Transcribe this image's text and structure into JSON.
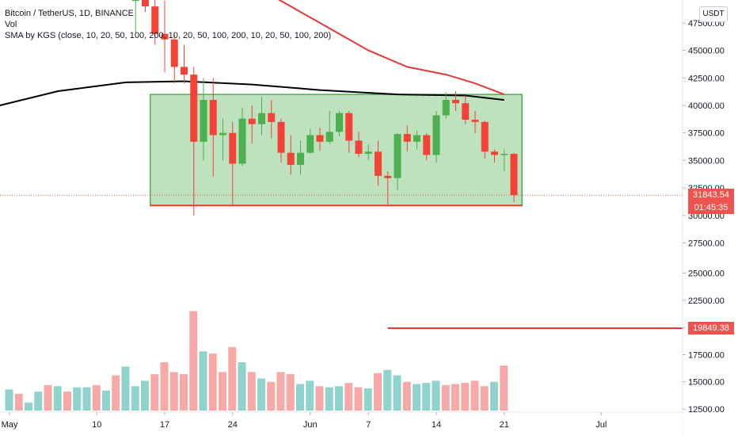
{
  "legend": {
    "symbol_line": "Bitcoin / TetherUS, 1D, BINANCE",
    "vol_line": "Vol",
    "sma_line": "SMA by KGS (close, 10, 20, 50, 100, 200, 10, 20, 50, 100, 200, 10, 20, 50, 100, 200)"
  },
  "price_scale": {
    "currency": "USDT",
    "last_price": "31843.54",
    "countdown": "01:45:35",
    "marked_level": "19849.38"
  },
  "colors": {
    "up": "#26a69a",
    "down": "#ef5350",
    "candle_up": "#4caf50",
    "candle_down": "#f44336",
    "vol_up": "#8fd3cc",
    "vol_down": "#f7a9a7",
    "range_fill": "#b9e0b9",
    "range_border": "#4caf50",
    "range_support": "#e53935",
    "sma_red": "#e53935",
    "sma_black": "#000000"
  },
  "chart_data": {
    "type": "candlestick",
    "symbol": "Bitcoin / TetherUS",
    "interval": "1D",
    "exchange": "BINANCE",
    "y_ticks": [
      "12500.00",
      "15000.00",
      "17500.00",
      "20000.00",
      "22500.00",
      "25000.00",
      "27500.00",
      "30000.00",
      "32500.00",
      "35000.00",
      "37500.00",
      "40000.00",
      "42500.00",
      "45000.00",
      "47500.00"
    ],
    "x_ticks": [
      {
        "label": "May",
        "day": 0
      },
      {
        "label": "10",
        "day": 9
      },
      {
        "label": "17",
        "day": 16
      },
      {
        "label": "24",
        "day": 23
      },
      {
        "label": "Jun",
        "day": 31
      },
      {
        "label": "7",
        "day": 37
      },
      {
        "label": "14",
        "day": 44
      },
      {
        "label": "21",
        "day": 51
      },
      {
        "label": "Jul",
        "day": 61
      }
    ],
    "candles": [
      {
        "day": 13,
        "o": 49500,
        "h": 52000,
        "l": 46500,
        "c": 49700
      },
      {
        "day": 14,
        "o": 49700,
        "h": 51500,
        "l": 48500,
        "c": 49000
      },
      {
        "day": 15,
        "o": 49000,
        "h": 50000,
        "l": 45500,
        "c": 46500
      },
      {
        "day": 16,
        "o": 46500,
        "h": 49500,
        "l": 43000,
        "c": 46000
      },
      {
        "day": 17,
        "o": 46000,
        "h": 46500,
        "l": 42000,
        "c": 43500
      },
      {
        "day": 18,
        "o": 43500,
        "h": 45500,
        "l": 42000,
        "c": 42800
      },
      {
        "day": 19,
        "o": 42800,
        "h": 43500,
        "l": 30000,
        "c": 36700
      },
      {
        "day": 20,
        "o": 36700,
        "h": 42500,
        "l": 35000,
        "c": 40500
      },
      {
        "day": 21,
        "o": 40500,
        "h": 42500,
        "l": 33500,
        "c": 37300
      },
      {
        "day": 22,
        "o": 37300,
        "h": 38800,
        "l": 35000,
        "c": 37500
      },
      {
        "day": 23,
        "o": 37500,
        "h": 38500,
        "l": 31000,
        "c": 34700
      },
      {
        "day": 24,
        "o": 34700,
        "h": 39800,
        "l": 34500,
        "c": 38800
      },
      {
        "day": 25,
        "o": 38800,
        "h": 40000,
        "l": 36500,
        "c": 38300
      },
      {
        "day": 26,
        "o": 38300,
        "h": 40800,
        "l": 37300,
        "c": 39300
      },
      {
        "day": 27,
        "o": 39300,
        "h": 40500,
        "l": 37000,
        "c": 38500
      },
      {
        "day": 28,
        "o": 38500,
        "h": 38800,
        "l": 34800,
        "c": 35700
      },
      {
        "day": 29,
        "o": 35700,
        "h": 37300,
        "l": 33700,
        "c": 34600
      },
      {
        "day": 30,
        "o": 34600,
        "h": 36800,
        "l": 33700,
        "c": 35700
      },
      {
        "day": 31,
        "o": 35700,
        "h": 37900,
        "l": 35600,
        "c": 37300
      },
      {
        "day": 32,
        "o": 37300,
        "h": 38000,
        "l": 35900,
        "c": 36700
      },
      {
        "day": 33,
        "o": 36700,
        "h": 39500,
        "l": 36500,
        "c": 37600
      },
      {
        "day": 34,
        "o": 37600,
        "h": 39500,
        "l": 37200,
        "c": 39300
      },
      {
        "day": 35,
        "o": 39300,
        "h": 39500,
        "l": 35700,
        "c": 36800
      },
      {
        "day": 36,
        "o": 36800,
        "h": 37600,
        "l": 35300,
        "c": 35600
      },
      {
        "day": 37,
        "o": 35600,
        "h": 36500,
        "l": 35000,
        "c": 35800
      },
      {
        "day": 38,
        "o": 35800,
        "h": 36800,
        "l": 32700,
        "c": 33600
      },
      {
        "day": 39,
        "o": 33600,
        "h": 34000,
        "l": 31000,
        "c": 33400
      },
      {
        "day": 40,
        "o": 33400,
        "h": 37500,
        "l": 32300,
        "c": 37400
      },
      {
        "day": 41,
        "o": 37400,
        "h": 38200,
        "l": 35800,
        "c": 36700
      },
      {
        "day": 42,
        "o": 36700,
        "h": 37700,
        "l": 36000,
        "c": 37300
      },
      {
        "day": 43,
        "o": 37300,
        "h": 37500,
        "l": 35000,
        "c": 35500
      },
      {
        "day": 44,
        "o": 35500,
        "h": 39500,
        "l": 34800,
        "c": 39100
      },
      {
        "day": 45,
        "o": 39100,
        "h": 41200,
        "l": 38800,
        "c": 40500
      },
      {
        "day": 46,
        "o": 40500,
        "h": 41300,
        "l": 39500,
        "c": 40200
      },
      {
        "day": 47,
        "o": 40200,
        "h": 40900,
        "l": 38300,
        "c": 38700
      },
      {
        "day": 48,
        "o": 38700,
        "h": 39500,
        "l": 37500,
        "c": 38500
      },
      {
        "day": 49,
        "o": 38500,
        "h": 38600,
        "l": 35200,
        "c": 35800
      },
      {
        "day": 50,
        "o": 35800,
        "h": 36000,
        "l": 34800,
        "c": 35500
      },
      {
        "day": 51,
        "o": 35500,
        "h": 36000,
        "l": 34000,
        "c": 35600
      },
      {
        "day": 52,
        "o": 35600,
        "h": 35700,
        "l": 31200,
        "c": 31843.54
      }
    ],
    "volume": [
      {
        "day": 0,
        "v": 14300,
        "up": true
      },
      {
        "day": 1,
        "v": 13900,
        "up": false
      },
      {
        "day": 2,
        "v": 13100,
        "up": true
      },
      {
        "day": 3,
        "v": 14100,
        "up": true
      },
      {
        "day": 4,
        "v": 14700,
        "up": false
      },
      {
        "day": 5,
        "v": 14600,
        "up": true
      },
      {
        "day": 6,
        "v": 14100,
        "up": false
      },
      {
        "day": 7,
        "v": 14500,
        "up": true
      },
      {
        "day": 8,
        "v": 14500,
        "up": true
      },
      {
        "day": 9,
        "v": 14700,
        "up": false
      },
      {
        "day": 10,
        "v": 14200,
        "up": true
      },
      {
        "day": 11,
        "v": 15600,
        "up": false
      },
      {
        "day": 12,
        "v": 16400,
        "up": true
      },
      {
        "day": 13,
        "v": 14600,
        "up": true
      },
      {
        "day": 14,
        "v": 15100,
        "up": true
      },
      {
        "day": 15,
        "v": 15700,
        "up": false
      },
      {
        "day": 16,
        "v": 16800,
        "up": false
      },
      {
        "day": 17,
        "v": 15900,
        "up": false
      },
      {
        "day": 18,
        "v": 15700,
        "up": false
      },
      {
        "day": 19,
        "v": 21500,
        "up": false
      },
      {
        "day": 20,
        "v": 17800,
        "up": true
      },
      {
        "day": 21,
        "v": 17600,
        "up": false
      },
      {
        "day": 22,
        "v": 15900,
        "up": false
      },
      {
        "day": 23,
        "v": 18200,
        "up": false
      },
      {
        "day": 24,
        "v": 16800,
        "up": true
      },
      {
        "day": 25,
        "v": 15900,
        "up": false
      },
      {
        "day": 26,
        "v": 15300,
        "up": true
      },
      {
        "day": 27,
        "v": 15000,
        "up": false
      },
      {
        "day": 28,
        "v": 15900,
        "up": false
      },
      {
        "day": 29,
        "v": 15700,
        "up": false
      },
      {
        "day": 30,
        "v": 14800,
        "up": true
      },
      {
        "day": 31,
        "v": 15100,
        "up": true
      },
      {
        "day": 32,
        "v": 14600,
        "up": false
      },
      {
        "day": 33,
        "v": 14500,
        "up": true
      },
      {
        "day": 34,
        "v": 14600,
        "up": true
      },
      {
        "day": 35,
        "v": 14900,
        "up": false
      },
      {
        "day": 36,
        "v": 14500,
        "up": false
      },
      {
        "day": 37,
        "v": 14400,
        "up": true
      },
      {
        "day": 38,
        "v": 15800,
        "up": false
      },
      {
        "day": 39,
        "v": 16100,
        "up": true
      },
      {
        "day": 40,
        "v": 15600,
        "up": true
      },
      {
        "day": 41,
        "v": 15000,
        "up": false
      },
      {
        "day": 42,
        "v": 14800,
        "up": true
      },
      {
        "day": 43,
        "v": 14900,
        "up": true
      },
      {
        "day": 44,
        "v": 15100,
        "up": true
      },
      {
        "day": 45,
        "v": 14700,
        "up": false
      },
      {
        "day": 46,
        "v": 14800,
        "up": false
      },
      {
        "day": 47,
        "v": 14900,
        "up": false
      },
      {
        "day": 48,
        "v": 15100,
        "up": false
      },
      {
        "day": 49,
        "v": 14600,
        "up": false
      },
      {
        "day": 50,
        "v": 15000,
        "up": true
      },
      {
        "day": 51,
        "v": 16500,
        "up": false
      }
    ],
    "sma_red": [
      {
        "day": 17,
        "v": 56000
      },
      {
        "day": 22,
        "v": 53000
      },
      {
        "day": 27,
        "v": 50000
      },
      {
        "day": 32,
        "v": 47500
      },
      {
        "day": 37,
        "v": 45000
      },
      {
        "day": 41,
        "v": 43500
      },
      {
        "day": 45,
        "v": 42800
      },
      {
        "day": 48,
        "v": 42000
      },
      {
        "day": 51,
        "v": 41000
      }
    ],
    "sma_black": [
      {
        "day": -1,
        "v": 40000
      },
      {
        "day": 5,
        "v": 41300
      },
      {
        "day": 12,
        "v": 42100
      },
      {
        "day": 18,
        "v": 42200
      },
      {
        "day": 25,
        "v": 41900
      },
      {
        "day": 32,
        "v": 41400
      },
      {
        "day": 40,
        "v": 41000
      },
      {
        "day": 47,
        "v": 40900
      },
      {
        "day": 51,
        "v": 40500
      }
    ],
    "range_box": {
      "from_day": 15,
      "to_day": 53,
      "top": 41000,
      "bottom": 30900
    },
    "support_line": {
      "from_day": 15,
      "to_day": 53,
      "level": 30900
    },
    "price_level_line": {
      "from_day": 39,
      "value": 19849.38
    },
    "last_price_line": 31843.54
  }
}
